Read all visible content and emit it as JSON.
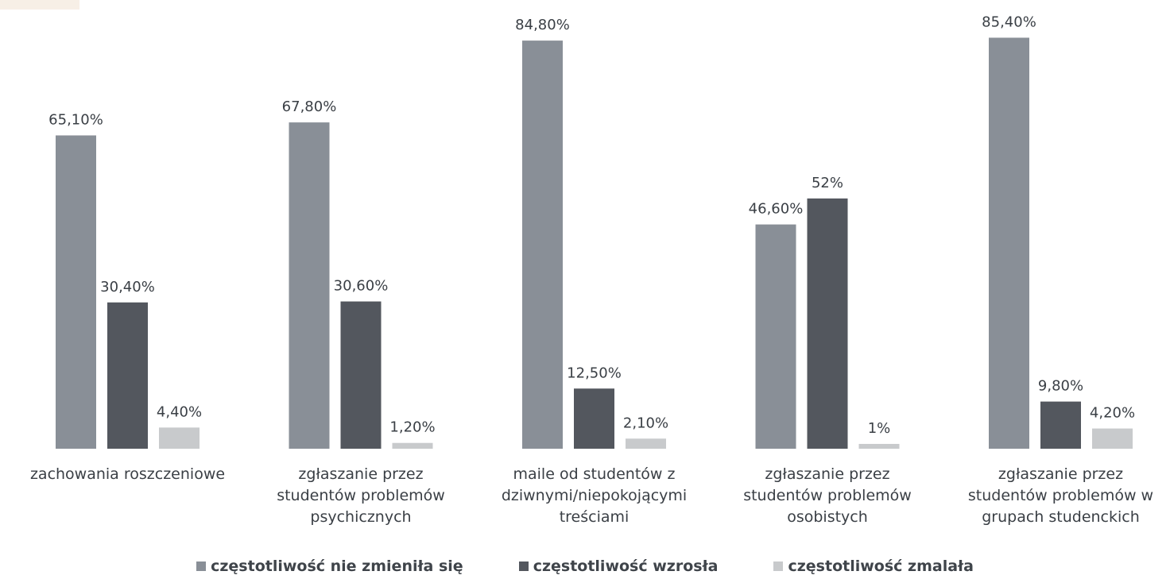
{
  "chart_data": {
    "type": "bar",
    "categories": [
      [
        "zachowania roszczeniowe"
      ],
      [
        "zgłaszanie przez",
        "studentów problemów",
        "psychicznych"
      ],
      [
        "maile od studentów z",
        "dziwnymi/niepokojącymi",
        "treściami"
      ],
      [
        "zgłaszanie przez",
        "studentów problemów",
        "osobistych"
      ],
      [
        "zgłaszanie przez",
        "studentów problemów w",
        "grupach studenckich"
      ]
    ],
    "series": [
      {
        "name": "częstotliwość nie zmieniła się",
        "color": "#898f97",
        "values": [
          65.1,
          67.8,
          84.8,
          46.6,
          85.4
        ],
        "labels": [
          "65,10%",
          "67,80%",
          "84,80%",
          "46,60%",
          "85,40%"
        ]
      },
      {
        "name": "częstotliwość wzrosła",
        "color": "#53575e",
        "values": [
          30.4,
          30.6,
          12.5,
          52,
          9.8
        ],
        "labels": [
          "30,40%",
          "30,60%",
          "12,50%",
          "52%",
          "9,80%"
        ]
      },
      {
        "name": "częstotliwość zmalała",
        "color": "#c8cacc",
        "values": [
          4.4,
          1.2,
          2.1,
          1,
          4.2
        ],
        "labels": [
          "4,40%",
          "1,20%",
          "2,10%",
          "1%",
          "4,20%"
        ]
      }
    ],
    "ylim": [
      0,
      100
    ],
    "grid": false,
    "legend_position": "bottom",
    "accent_color": "#f7efe6"
  }
}
